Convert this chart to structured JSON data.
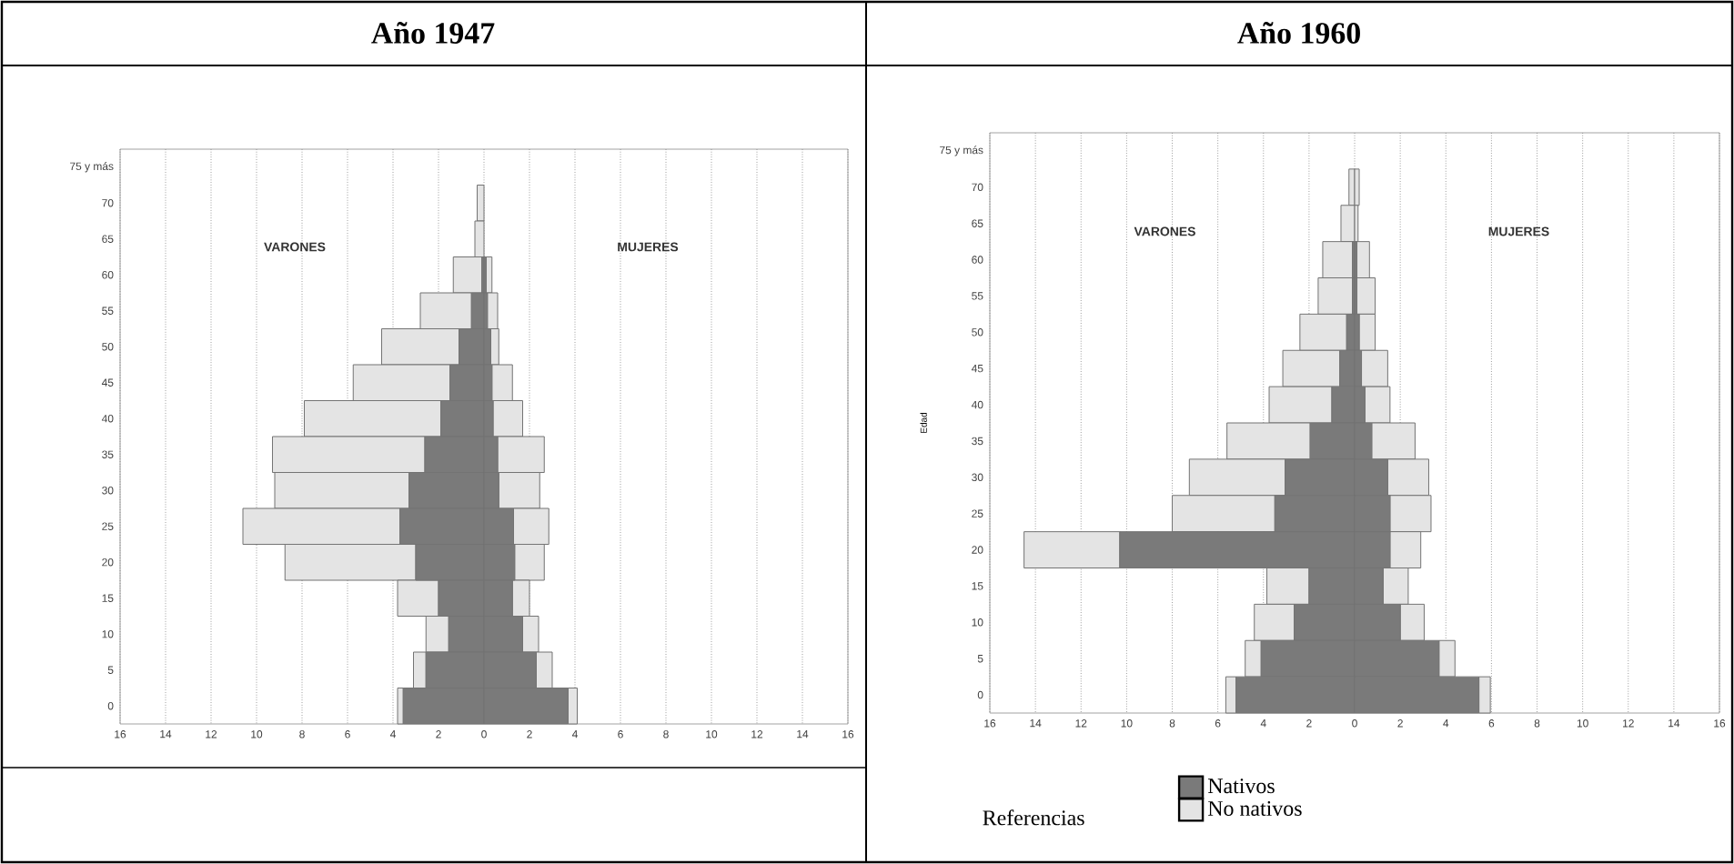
{
  "chart_data": [
    {
      "type": "bar",
      "orientation": "horizontal",
      "stacked": true,
      "title": "Año 1947",
      "grid": "x",
      "categories": [
        "75 y más",
        "70",
        "65",
        "60",
        "55",
        "50",
        "45",
        "40",
        "35",
        "30",
        "25",
        "20",
        "15",
        "10",
        "5",
        "0"
      ],
      "series": [
        {
          "color": "#7a7a7a",
          "values": [
            null,
            0,
            0,
            -0.1,
            -0.55,
            -1.1,
            -1.5,
            -1.9,
            -2.6,
            -3.3,
            -3.7,
            -3.0,
            -2.0,
            -1.55,
            -2.55,
            -3.55
          ]
        },
        {
          "color": "#e4e4e4",
          "values": [
            null,
            -0.3,
            -0.4,
            -1.25,
            -2.25,
            -3.4,
            -4.25,
            -6.0,
            -6.7,
            -5.9,
            -6.9,
            -5.75,
            -1.8,
            -1.0,
            -0.55,
            -0.25
          ]
        },
        {
          "color": "#7a7a7a",
          "values": [
            null,
            null,
            null,
            0.1,
            0.15,
            0.3,
            0.35,
            0.4,
            0.6,
            0.65,
            1.3,
            1.35,
            1.25,
            1.7,
            2.3,
            3.7
          ]
        },
        {
          "color": "#e4e4e4",
          "values": [
            null,
            null,
            null,
            0.25,
            0.45,
            0.35,
            0.9,
            1.3,
            2.05,
            1.8,
            1.55,
            1.3,
            0.75,
            0.7,
            0.7,
            0.4
          ]
        }
      ],
      "xlim": [
        -16,
        16
      ],
      "xticks": [
        {
          "value": -16,
          "label": "16"
        },
        {
          "value": -14,
          "label": "14"
        },
        {
          "value": -12,
          "label": "12"
        },
        {
          "value": -10,
          "label": "10"
        },
        {
          "value": -8,
          "label": "8"
        },
        {
          "value": -6,
          "label": "6"
        },
        {
          "value": -4,
          "label": "4"
        },
        {
          "value": -2,
          "label": "2"
        },
        0,
        2,
        4,
        6,
        8,
        10,
        12,
        14,
        16
      ],
      "annotations": [
        "VARONES",
        "MUJERES"
      ]
    },
    {
      "type": "bar",
      "orientation": "horizontal",
      "stacked": true,
      "title": "Año 1960",
      "grid": "x",
      "ylabel": "Edad",
      "categories": [
        "75 y más",
        "70",
        "65",
        "60",
        "55",
        "50",
        "45",
        "40",
        "35",
        "30",
        "25",
        "20",
        "15",
        "10",
        "5",
        "0"
      ],
      "series": [
        {
          "name": "Nativos",
          "color": "#7a7a7a",
          "values": [
            null,
            0,
            0,
            -0.1,
            -0.1,
            -0.35,
            -0.65,
            -1.0,
            -1.95,
            -3.05,
            -3.5,
            -10.3,
            -2.0,
            -2.65,
            -4.1,
            -5.2
          ]
        },
        {
          "name": "No nativos",
          "color": "#e4e4e4",
          "values": [
            null,
            -0.25,
            -0.6,
            -1.3,
            -1.5,
            -2.05,
            -2.5,
            -2.75,
            -3.65,
            -4.2,
            -4.5,
            -4.2,
            -1.85,
            -1.75,
            -0.7,
            -0.45
          ]
        },
        {
          "color": "#7a7a7a",
          "values": [
            null,
            0,
            0,
            0.1,
            0.1,
            0.2,
            0.3,
            0.45,
            0.75,
            1.45,
            1.55,
            1.55,
            1.25,
            2.0,
            3.7,
            5.45
          ]
        },
        {
          "color": "#e4e4e4",
          "values": [
            null,
            0.2,
            0.15,
            0.55,
            0.8,
            0.7,
            1.15,
            1.1,
            1.9,
            1.8,
            1.8,
            1.35,
            1.1,
            1.05,
            0.7,
            0.5
          ]
        }
      ],
      "xlim": [
        -16,
        16
      ],
      "xticks": [
        {
          "value": -16,
          "label": "16"
        },
        {
          "value": -14,
          "label": "14"
        },
        {
          "value": -12,
          "label": "12"
        },
        {
          "value": -10,
          "label": "10"
        },
        {
          "value": -8,
          "label": "8"
        },
        {
          "value": -6,
          "label": "6"
        },
        {
          "value": -4,
          "label": "4"
        },
        {
          "value": -2,
          "label": "2"
        },
        0,
        2,
        4,
        6,
        8,
        10,
        12,
        14,
        16
      ],
      "annotations": [
        "VARONES",
        "MUJERES"
      ],
      "legend": "bottom",
      "legend_title": "Referencias"
    }
  ]
}
